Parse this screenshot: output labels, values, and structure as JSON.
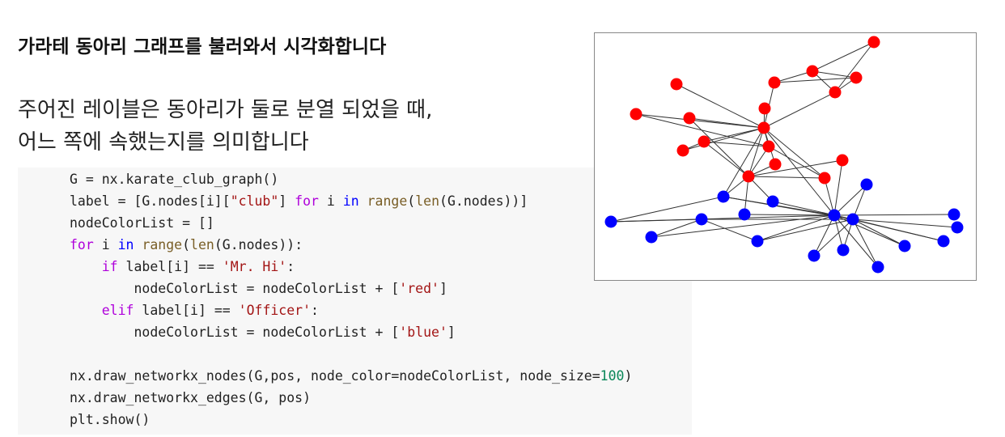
{
  "header": {
    "title": "가라테 동아리 그래프를 불러와서 시각화합니다"
  },
  "body": {
    "lines": [
      "주어진 레이블은 동아리가 둘로 분열 되었을 때,",
      "어느 쪽에 속했는지를 의미합니다"
    ]
  },
  "code": {
    "lines": [
      [
        {
          "text": "G = nx.karate_club_graph()",
          "color": "#222222"
        }
      ],
      [
        {
          "text": "label = [G.nodes[i][",
          "color": "#222222"
        },
        {
          "text": "\"club\"",
          "color": "#a31515"
        },
        {
          "text": "] ",
          "color": "#222222"
        },
        {
          "text": "for",
          "color": "#af00db"
        },
        {
          "text": " i ",
          "color": "#222222"
        },
        {
          "text": "in",
          "color": "#0000ff"
        },
        {
          "text": " ",
          "color": "#222222"
        },
        {
          "text": "range",
          "color": "#795e26"
        },
        {
          "text": "(",
          "color": "#222222"
        },
        {
          "text": "len",
          "color": "#795e26"
        },
        {
          "text": "(G.nodes))]",
          "color": "#222222"
        }
      ],
      [
        {
          "text": "nodeColorList = []",
          "color": "#222222"
        }
      ],
      [
        {
          "text": "for",
          "color": "#af00db"
        },
        {
          "text": " i ",
          "color": "#222222"
        },
        {
          "text": "in",
          "color": "#0000ff"
        },
        {
          "text": " ",
          "color": "#222222"
        },
        {
          "text": "range",
          "color": "#795e26"
        },
        {
          "text": "(",
          "color": "#222222"
        },
        {
          "text": "len",
          "color": "#795e26"
        },
        {
          "text": "(G.nodes)):",
          "color": "#222222"
        }
      ],
      [
        {
          "text": "    ",
          "color": "#222222"
        },
        {
          "text": "if",
          "color": "#af00db"
        },
        {
          "text": " label[i] == ",
          "color": "#222222"
        },
        {
          "text": "'Mr. Hi'",
          "color": "#a31515"
        },
        {
          "text": ":",
          "color": "#222222"
        }
      ],
      [
        {
          "text": "        nodeColorList = nodeColorList + [",
          "color": "#222222"
        },
        {
          "text": "'red'",
          "color": "#a31515"
        },
        {
          "text": "]",
          "color": "#222222"
        }
      ],
      [
        {
          "text": "    ",
          "color": "#222222"
        },
        {
          "text": "elif",
          "color": "#af00db"
        },
        {
          "text": " label[i] == ",
          "color": "#222222"
        },
        {
          "text": "'Officer'",
          "color": "#a31515"
        },
        {
          "text": ":",
          "color": "#222222"
        }
      ],
      [
        {
          "text": "        nodeColorList = nodeColorList + [",
          "color": "#222222"
        },
        {
          "text": "'blue'",
          "color": "#a31515"
        },
        {
          "text": "]",
          "color": "#222222"
        }
      ],
      [],
      [
        {
          "text": "nx.draw_networkx_nodes(G,pos, node_color=nodeColorList, node_size=",
          "color": "#222222"
        },
        {
          "text": "100",
          "color": "#098658"
        },
        {
          "text": ")",
          "color": "#222222"
        }
      ],
      [
        {
          "text": "nx.draw_networkx_edges(G, pos)",
          "color": "#222222"
        }
      ],
      [
        {
          "text": "plt.show()",
          "color": "#222222"
        }
      ]
    ]
  }
}
